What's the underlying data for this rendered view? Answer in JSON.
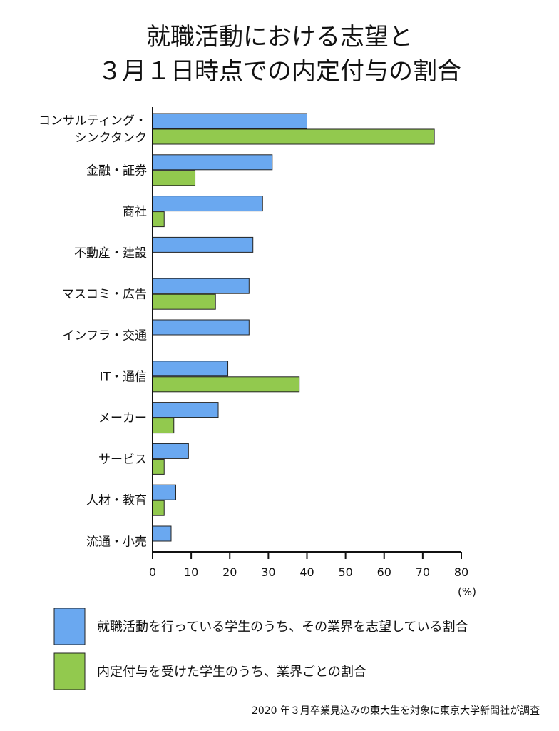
{
  "chart_data": {
    "type": "bar",
    "orientation": "horizontal",
    "title_lines": [
      "就職活動における志望と",
      "３月１日時点での内定付与の割合"
    ],
    "categories": [
      [
        "コンサルティング・",
        "シンクタンク"
      ],
      [
        "金融・証券"
      ],
      [
        "商社"
      ],
      [
        "不動産・建設"
      ],
      [
        "マスコミ・広告"
      ],
      [
        "インフラ・交通"
      ],
      [
        "IT・通信"
      ],
      [
        "メーカー"
      ],
      [
        "サービス"
      ],
      [
        "人材・教育"
      ],
      [
        "流通・小売"
      ]
    ],
    "series": [
      {
        "name": "就職活動を行っている学生のうち、その業界を志望している割合",
        "color": "#6aa8f0",
        "values": [
          40,
          31,
          28.5,
          26,
          25,
          25,
          19.5,
          17,
          9.3,
          6,
          4.8
        ]
      },
      {
        "name": "内定付与を受けた学生のうち、業界ごとの割合",
        "color": "#92c94e",
        "values": [
          73,
          11,
          3,
          null,
          16.3,
          null,
          38,
          5.5,
          3,
          3,
          null
        ]
      }
    ],
    "xlim": [
      0,
      80
    ],
    "x_ticks": [
      "0",
      "10",
      "20",
      "30",
      "40",
      "50",
      "60",
      "70",
      "80"
    ],
    "x_unit": "(%)",
    "legend_position": "bottom",
    "note": "2020 年３月卒業見込みの東大生を対象に東京大学新聞社が調査"
  }
}
